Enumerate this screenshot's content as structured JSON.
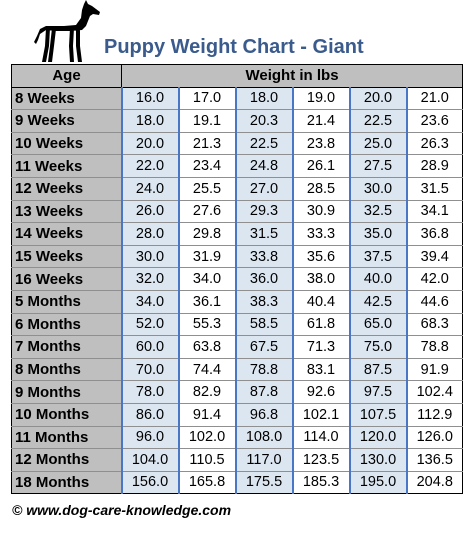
{
  "title": "Puppy Weight Chart - Giant",
  "header": {
    "age": "Age",
    "weight": "Weight in lbs"
  },
  "rows": [
    {
      "age": "8 Weeks",
      "values": [
        "16.0",
        "17.0",
        "18.0",
        "19.0",
        "20.0",
        "21.0"
      ]
    },
    {
      "age": "9 Weeks",
      "values": [
        "18.0",
        "19.1",
        "20.3",
        "21.4",
        "22.5",
        "23.6"
      ]
    },
    {
      "age": "10 Weeks",
      "values": [
        "20.0",
        "21.3",
        "22.5",
        "23.8",
        "25.0",
        "26.3"
      ]
    },
    {
      "age": "11 Weeks",
      "values": [
        "22.0",
        "23.4",
        "24.8",
        "26.1",
        "27.5",
        "28.9"
      ]
    },
    {
      "age": "12 Weeks",
      "values": [
        "24.0",
        "25.5",
        "27.0",
        "28.5",
        "30.0",
        "31.5"
      ]
    },
    {
      "age": "13 Weeks",
      "values": [
        "26.0",
        "27.6",
        "29.3",
        "30.9",
        "32.5",
        "34.1"
      ]
    },
    {
      "age": "14 Weeks",
      "values": [
        "28.0",
        "29.8",
        "31.5",
        "33.3",
        "35.0",
        "36.8"
      ]
    },
    {
      "age": "15 Weeks",
      "values": [
        "30.0",
        "31.9",
        "33.8",
        "35.6",
        "37.5",
        "39.4"
      ]
    },
    {
      "age": "16 Weeks",
      "values": [
        "32.0",
        "34.0",
        "36.0",
        "38.0",
        "40.0",
        "42.0"
      ]
    },
    {
      "age": "5 Months",
      "values": [
        "34.0",
        "36.1",
        "38.3",
        "40.4",
        "42.5",
        "44.6"
      ]
    },
    {
      "age": "6 Months",
      "values": [
        "52.0",
        "55.3",
        "58.5",
        "61.8",
        "65.0",
        "68.3"
      ]
    },
    {
      "age": "7 Months",
      "values": [
        "60.0",
        "63.8",
        "67.5",
        "71.3",
        "75.0",
        "78.8"
      ]
    },
    {
      "age": "8 Months",
      "values": [
        "70.0",
        "74.4",
        "78.8",
        "83.1",
        "87.5",
        "91.9"
      ]
    },
    {
      "age": "9 Months",
      "values": [
        "78.0",
        "82.9",
        "87.8",
        "92.6",
        "97.5",
        "102.4"
      ]
    },
    {
      "age": "10 Months",
      "values": [
        "86.0",
        "91.4",
        "96.8",
        "102.1",
        "107.5",
        "112.9"
      ]
    },
    {
      "age": "11 Months",
      "values": [
        "96.0",
        "102.0",
        "108.0",
        "114.0",
        "120.0",
        "126.0"
      ]
    },
    {
      "age": "12 Months",
      "values": [
        "104.0",
        "110.5",
        "117.0",
        "123.5",
        "130.0",
        "136.5"
      ]
    },
    {
      "age": "18 Months",
      "values": [
        "156.0",
        "165.8",
        "175.5",
        "185.3",
        "195.0",
        "204.8"
      ]
    }
  ],
  "footer": "© www.dog-care-knowledge.com",
  "colors": {
    "title": "#3a5b8c",
    "header_bg": "#bfbfbf",
    "shaded_column": "#dce6f1",
    "column_border": "#4a77c5"
  },
  "logo": "great-dane-silhouette"
}
